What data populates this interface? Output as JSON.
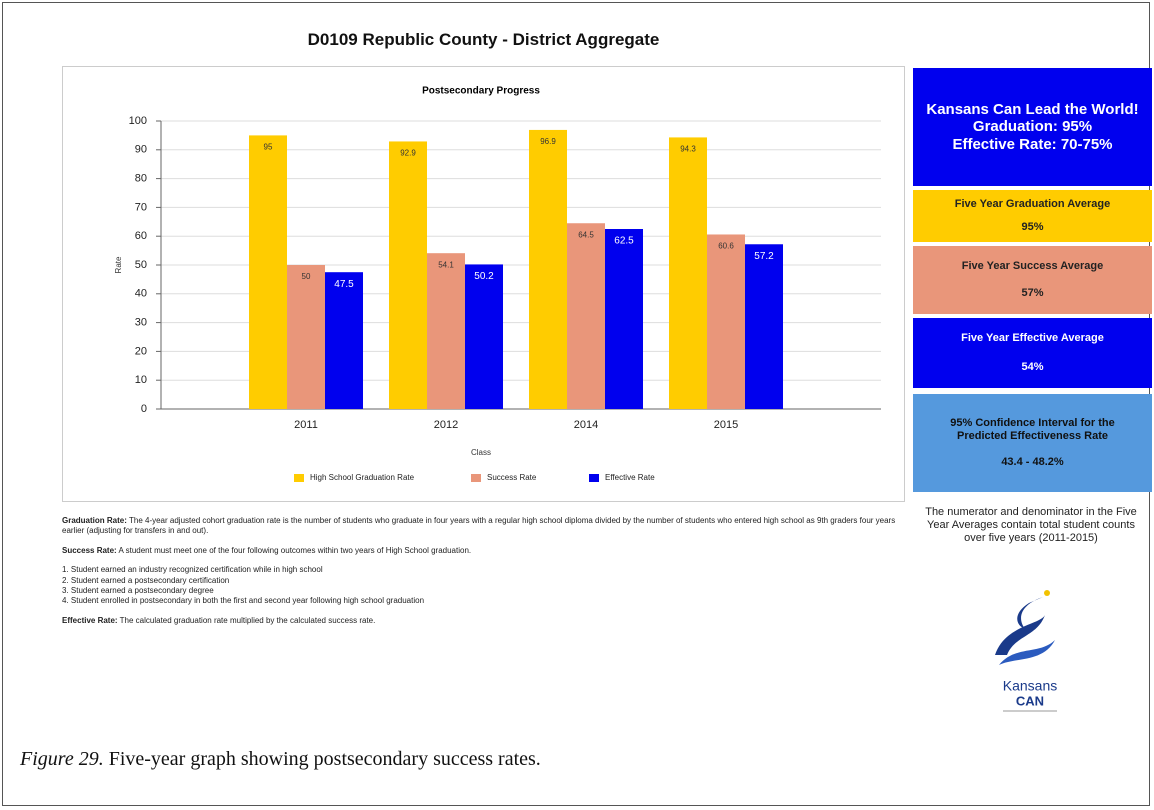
{
  "header": {
    "title": "D0109 Republic County - District Aggregate"
  },
  "chart_data": {
    "type": "bar",
    "title": "Postsecondary Progress",
    "x_label": "Class",
    "y_label": "Rate",
    "categories": [
      "2011",
      "2012",
      "2014",
      "2015"
    ],
    "series": [
      {
        "name": "High School Graduation Rate",
        "color": "#ffcc00",
        "values": [
          95,
          92.9,
          96.9,
          94.3
        ]
      },
      {
        "name": "Success Rate",
        "color": "#e9967a",
        "values": [
          50,
          54.1,
          64.5,
          60.6
        ]
      },
      {
        "name": "Effective Rate",
        "color": "#0000ee",
        "values": [
          47.5,
          50.2,
          62.5,
          57.2
        ]
      }
    ],
    "ylim": [
      0,
      100
    ],
    "yticks": [
      0,
      10,
      20,
      30,
      40,
      50,
      60,
      70,
      80,
      90,
      100
    ],
    "grid": true,
    "legend": "bottom"
  },
  "sidebar": {
    "goal": {
      "lines": [
        "Kansans Can Lead the World!",
        "Graduation: 95%",
        "Effective Rate: 70-75%"
      ]
    },
    "graduation_average": {
      "label": "Five Year Graduation Average",
      "value": "95%"
    },
    "success_average": {
      "label": "Five Year Success Average",
      "value": "57%"
    },
    "effective_average": {
      "label": "Five Year Effective Average",
      "value": "54%"
    },
    "confidence_interval": {
      "label": "95% Confidence Interval for the Predicted Effectiveness Rate",
      "value": "43.4 - 48.2%"
    },
    "note": "The numerator and denominator in the Five Year Averages contain total student counts over five years (2011-2015)",
    "logo": {
      "line1": "Kansans",
      "line2": "CAN"
    }
  },
  "notes": {
    "graduation": {
      "term": "Graduation Rate:",
      "text": "The 4-year adjusted cohort graduation rate is the number of students who graduate in four years with a regular high school diploma divided by the number of students who entered high school as 9th graders four years earlier (adjusting for transfers in and out)."
    },
    "success": {
      "term": "Success Rate:",
      "text": "A student must meet one of the four following outcomes within two years of High School graduation."
    },
    "outcomes": [
      "1. Student earned an industry recognized certification while in high school",
      "2. Student earned a postsecondary certification",
      "3. Student earned a postsecondary degree",
      "4. Student enrolled in postsecondary in both the first and second year following high school graduation"
    ],
    "effective": {
      "term": "Effective Rate:",
      "text": "The calculated graduation rate multiplied by the calculated success rate."
    }
  },
  "caption": {
    "label": "Figure 29.",
    "text": "Five-year graph showing postsecondary success rates."
  }
}
